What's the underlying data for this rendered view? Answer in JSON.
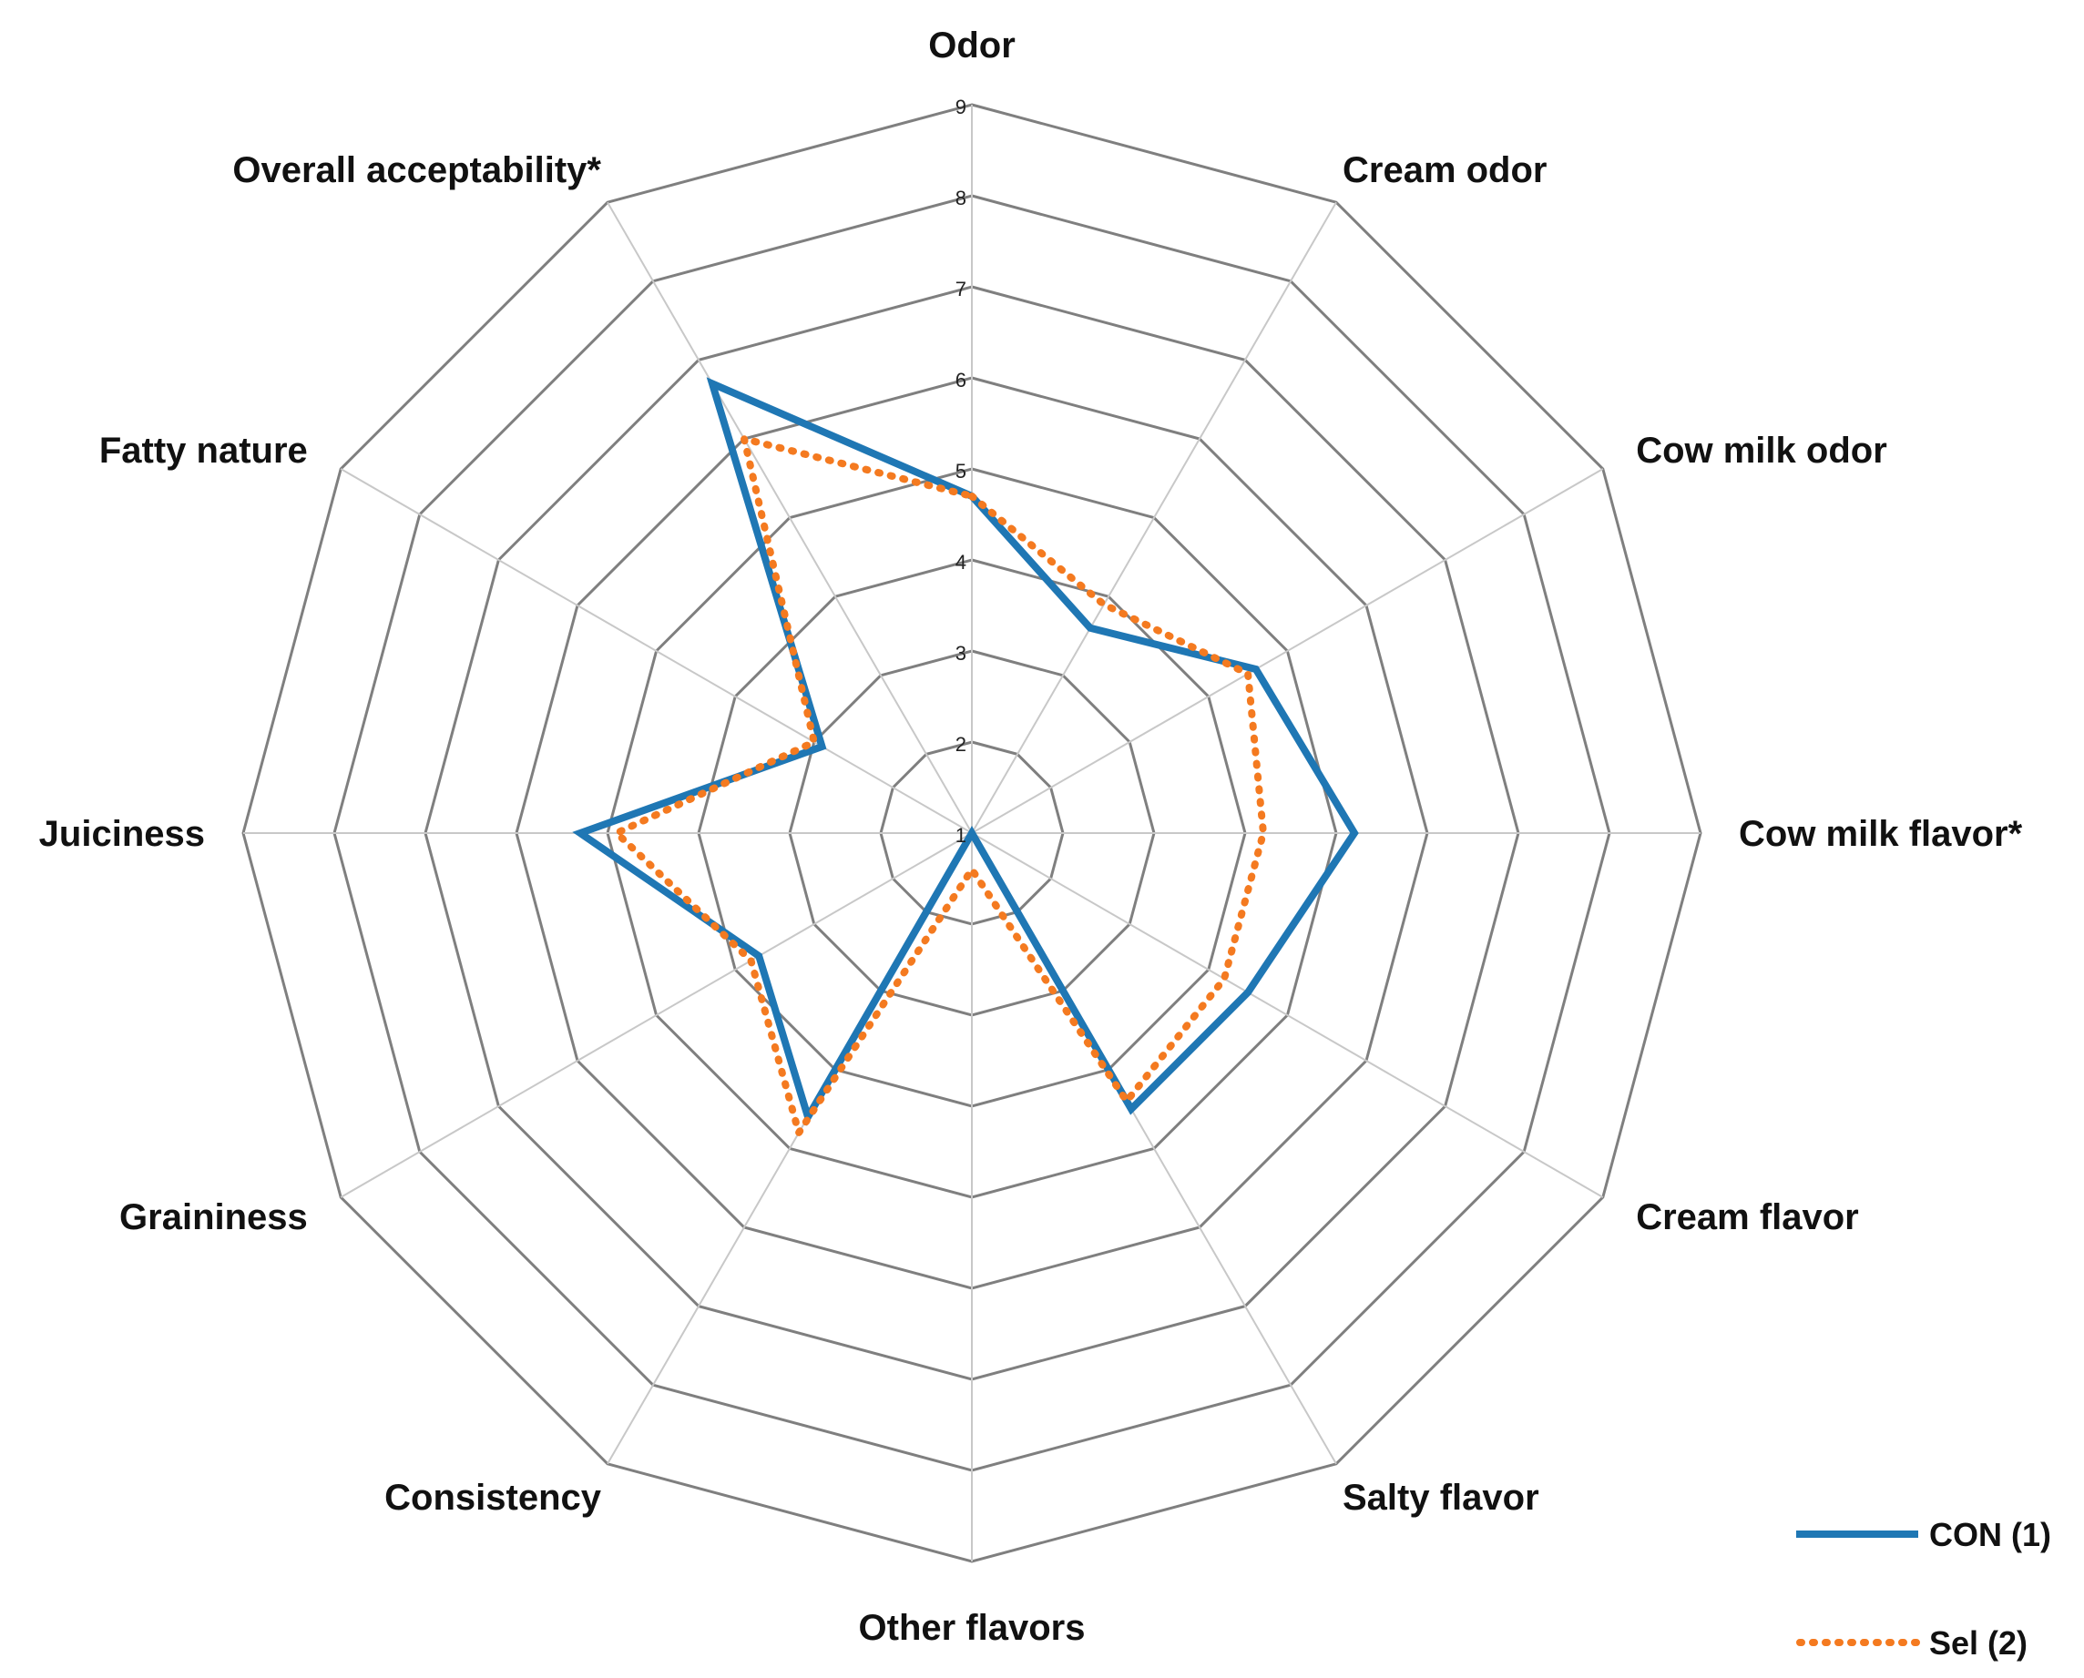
{
  "chart_data": {
    "type": "radar",
    "categories": [
      "Odor",
      "Cream odor",
      "Cow milk odor",
      "Cow milk flavor*",
      "Cream flavor",
      "Salty flavor",
      "Other flavors",
      "Consistency",
      "Graininess",
      "Juiciness",
      "Fatty nature",
      "Overall acceptability*"
    ],
    "r_ticks": [
      "1",
      "2",
      "3",
      "4",
      "5",
      "6",
      "7",
      "8",
      "9"
    ],
    "rlim": [
      1,
      9
    ],
    "grid": true,
    "legend": "bottom-right",
    "series": [
      {
        "name": "CON (1)",
        "color": "#1f77b4",
        "style": "solid",
        "values": [
          4.7,
          3.6,
          4.6,
          5.2,
          4.5,
          4.5,
          1.0,
          4.6,
          3.7,
          5.3,
          2.9,
          6.7
        ]
      },
      {
        "name": "Sel (2)",
        "color": "#f47a20",
        "style": "dotted",
        "values": [
          4.7,
          3.9,
          4.5,
          4.2,
          4.2,
          4.4,
          1.4,
          4.8,
          3.8,
          4.9,
          3.0,
          6.0
        ]
      }
    ]
  }
}
